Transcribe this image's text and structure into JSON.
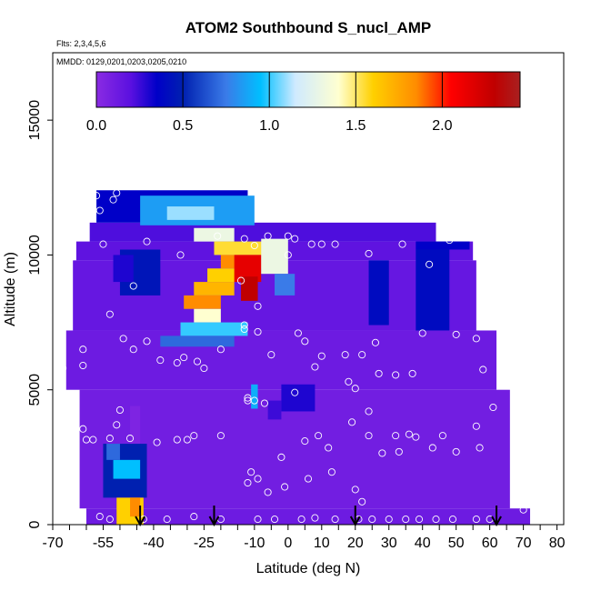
{
  "chart_data": {
    "type": "heatmap",
    "title": "ATOM2 Southbound S_nucl_AMP",
    "flights_note": "Flts: 2,3,4,5,6",
    "dates_note": "MMDD: 0129,0201,0203,0205,0210",
    "xlabel": "Latitude (deg N)",
    "ylabel": "Altitude (m)",
    "xlim": [
      -70,
      82
    ],
    "ylim": [
      0,
      17500
    ],
    "xticks": [
      -70,
      -55,
      -40,
      -25,
      -10,
      0,
      10,
      20,
      30,
      40,
      50,
      60,
      70,
      80
    ],
    "yticks": [
      0,
      5000,
      10000,
      15000
    ],
    "colorbar": {
      "range": [
        0,
        2.45
      ],
      "ticks": [
        0.0,
        0.5,
        1.0,
        1.5,
        2.0
      ],
      "tick_labels": [
        "0.0",
        "0.5",
        "1.0",
        "1.5",
        "2.0"
      ],
      "stops": [
        {
          "v": 0.0,
          "c": "#8a2be2"
        },
        {
          "v": 0.2,
          "c": "#5a10e0"
        },
        {
          "v": 0.35,
          "c": "#0000c8"
        },
        {
          "v": 0.5,
          "c": "#0020b0"
        },
        {
          "v": 0.75,
          "c": "#3a7be8"
        },
        {
          "v": 0.95,
          "c": "#00bfff"
        },
        {
          "v": 1.15,
          "c": "#cfeaff"
        },
        {
          "v": 1.4,
          "c": "#ffffd0"
        },
        {
          "v": 1.6,
          "c": "#ffd000"
        },
        {
          "v": 1.85,
          "c": "#ff8c00"
        },
        {
          "v": 2.05,
          "c": "#ff0000"
        },
        {
          "v": 2.3,
          "c": "#c00000"
        },
        {
          "v": 2.45,
          "c": "#a82020"
        }
      ]
    },
    "arrows_lat": [
      -44,
      -22,
      20,
      62
    ],
    "obs_points": [
      [
        -57,
        12200
      ],
      [
        -51,
        12300
      ],
      [
        -52,
        12050
      ],
      [
        -56,
        11650
      ],
      [
        -55,
        10400
      ],
      [
        -65,
        9850
      ],
      [
        -46,
        8850
      ],
      [
        -42,
        10500
      ],
      [
        -32,
        10000
      ],
      [
        -21,
        10700
      ],
      [
        -13,
        10600
      ],
      [
        -10,
        10350
      ],
      [
        -14,
        9050
      ],
      [
        -9,
        8100
      ],
      [
        -6,
        10700
      ],
      [
        0,
        10700
      ],
      [
        2,
        10600
      ],
      [
        7,
        10400
      ],
      [
        10,
        10400
      ],
      [
        14,
        10400
      ],
      [
        24,
        10050
      ],
      [
        34,
        10400
      ],
      [
        42,
        9650
      ],
      [
        48,
        10550
      ],
      [
        0,
        10000
      ],
      [
        -61,
        6500
      ],
      [
        -67,
        5800
      ],
      [
        -61,
        5900
      ],
      [
        -53,
        7800
      ],
      [
        -49,
        6900
      ],
      [
        -46,
        6500
      ],
      [
        -42,
        6800
      ],
      [
        -38,
        6100
      ],
      [
        -33,
        6000
      ],
      [
        -31,
        6200
      ],
      [
        -27,
        6050
      ],
      [
        -25,
        5800
      ],
      [
        -20,
        6500
      ],
      [
        -13,
        7400
      ],
      [
        -13,
        7250
      ],
      [
        -9,
        7150
      ],
      [
        -5,
        6300
      ],
      [
        3,
        7100
      ],
      [
        5,
        6800
      ],
      [
        10,
        6250
      ],
      [
        8,
        5850
      ],
      [
        17,
        6300
      ],
      [
        22,
        6300
      ],
      [
        26,
        6750
      ],
      [
        18,
        5300
      ],
      [
        20,
        5050
      ],
      [
        27,
        5600
      ],
      [
        32,
        5550
      ],
      [
        37,
        5600
      ],
      [
        40,
        7100
      ],
      [
        50,
        7050
      ],
      [
        56,
        6900
      ],
      [
        58,
        5750
      ],
      [
        -61,
        3550
      ],
      [
        -58,
        3150
      ],
      [
        -60,
        3150
      ],
      [
        -53,
        3200
      ],
      [
        -51,
        3700
      ],
      [
        -50,
        4250
      ],
      [
        -47,
        3200
      ],
      [
        -39,
        3050
      ],
      [
        -33,
        3150
      ],
      [
        -30,
        3150
      ],
      [
        -28,
        3300
      ],
      [
        -20,
        3300
      ],
      [
        -12,
        4600
      ],
      [
        -12,
        4700
      ],
      [
        -10,
        4600
      ],
      [
        -7,
        4500
      ],
      [
        2,
        4900
      ],
      [
        5,
        3100
      ],
      [
        9,
        3300
      ],
      [
        12,
        2850
      ],
      [
        19,
        3800
      ],
      [
        24,
        4200
      ],
      [
        24,
        3300
      ],
      [
        28,
        2650
      ],
      [
        32,
        3300
      ],
      [
        33,
        2700
      ],
      [
        36,
        3350
      ],
      [
        38,
        3250
      ],
      [
        43,
        2850
      ],
      [
        46,
        3300
      ],
      [
        50,
        2700
      ],
      [
        56,
        3650
      ],
      [
        57,
        2850
      ],
      [
        61,
        4350
      ],
      [
        -11,
        1950
      ],
      [
        -12,
        1550
      ],
      [
        -9,
        1700
      ],
      [
        -1,
        1400
      ],
      [
        -2,
        2500
      ],
      [
        6,
        1700
      ],
      [
        13,
        1950
      ],
      [
        20,
        1300
      ],
      [
        22,
        850
      ],
      [
        -6,
        1200
      ],
      [
        -56,
        300
      ],
      [
        -53,
        200
      ],
      [
        -43,
        200
      ],
      [
        -36,
        200
      ],
      [
        -20,
        200
      ],
      [
        -9,
        200
      ],
      [
        -4,
        200
      ],
      [
        4,
        200
      ],
      [
        8,
        250
      ],
      [
        14,
        200
      ],
      [
        21,
        200
      ],
      [
        25,
        200
      ],
      [
        30,
        200
      ],
      [
        35,
        200
      ],
      [
        39,
        200
      ],
      [
        44,
        200
      ],
      [
        49,
        200
      ],
      [
        56,
        200
      ],
      [
        60,
        200
      ],
      [
        70,
        550
      ],
      [
        -28,
        300
      ]
    ],
    "field_blocks": [
      {
        "lat": [
          -60,
          72
        ],
        "alt": [
          0,
          600
        ],
        "v": 0.12
      },
      {
        "lat": [
          -62,
          66
        ],
        "alt": [
          600,
          5000
        ],
        "v": 0.1
      },
      {
        "lat": [
          -66,
          62
        ],
        "alt": [
          5000,
          7200
        ],
        "v": 0.12
      },
      {
        "lat": [
          -64,
          56
        ],
        "alt": [
          7200,
          9800
        ],
        "v": 0.15
      },
      {
        "lat": [
          -63,
          55
        ],
        "alt": [
          9800,
          10500
        ],
        "v": 0.18
      },
      {
        "lat": [
          -59,
          44
        ],
        "alt": [
          10500,
          11200
        ],
        "v": 0.22
      },
      {
        "lat": [
          -57,
          -12
        ],
        "alt": [
          11200,
          12400
        ],
        "v": 0.35
      },
      {
        "lat": [
          -55,
          -42
        ],
        "alt": [
          1000,
          3000
        ],
        "v": 0.5
      },
      {
        "lat": [
          -51,
          -43
        ],
        "alt": [
          0,
          1000
        ],
        "v": 1.6
      },
      {
        "lat": [
          -47,
          -44
        ],
        "alt": [
          300,
          1000
        ],
        "v": 1.85
      },
      {
        "lat": [
          -52,
          -44
        ],
        "alt": [
          1700,
          2400
        ],
        "v": 0.95
      },
      {
        "lat": [
          -54,
          -50
        ],
        "alt": [
          2400,
          3000
        ],
        "v": 0.7
      },
      {
        "lat": [
          -47,
          -44
        ],
        "alt": [
          3000,
          4400
        ],
        "v": 0.05
      },
      {
        "lat": [
          -44,
          -10
        ],
        "alt": [
          11100,
          12200
        ],
        "v": 0.85
      },
      {
        "lat": [
          -36,
          -22
        ],
        "alt": [
          11300,
          11800
        ],
        "v": 1.1
      },
      {
        "lat": [
          -28,
          -16
        ],
        "alt": [
          10500,
          11000
        ],
        "v": 1.3
      },
      {
        "lat": [
          -22,
          -6
        ],
        "alt": [
          10000,
          10500
        ],
        "v": 1.55
      },
      {
        "lat": [
          -20,
          -8
        ],
        "alt": [
          9500,
          10000
        ],
        "v": 1.85
      },
      {
        "lat": [
          -24,
          -12
        ],
        "alt": [
          9000,
          9500
        ],
        "v": 1.6
      },
      {
        "lat": [
          -16,
          -8
        ],
        "alt": [
          9000,
          10000
        ],
        "v": 2.15
      },
      {
        "lat": [
          -14,
          -9
        ],
        "alt": [
          8300,
          9200
        ],
        "v": 2.3
      },
      {
        "lat": [
          -28,
          -16
        ],
        "alt": [
          8500,
          9000
        ],
        "v": 1.7
      },
      {
        "lat": [
          -31,
          -20
        ],
        "alt": [
          8000,
          8500
        ],
        "v": 1.85
      },
      {
        "lat": [
          -28,
          -20
        ],
        "alt": [
          7500,
          8000
        ],
        "v": 1.4
      },
      {
        "lat": [
          -32,
          -12
        ],
        "alt": [
          7000,
          7500
        ],
        "v": 1.0
      },
      {
        "lat": [
          -38,
          -16
        ],
        "alt": [
          6600,
          7000
        ],
        "v": 0.7
      },
      {
        "lat": [
          -8,
          0
        ],
        "alt": [
          9300,
          10600
        ],
        "v": 1.3
      },
      {
        "lat": [
          -4,
          2
        ],
        "alt": [
          8500,
          9300
        ],
        "v": 0.75
      },
      {
        "lat": [
          -50,
          -38
        ],
        "alt": [
          8500,
          10200
        ],
        "v": 0.45
      },
      {
        "lat": [
          -52,
          -46
        ],
        "alt": [
          9000,
          10000
        ],
        "v": 0.3
      },
      {
        "lat": [
          24,
          30
        ],
        "alt": [
          7400,
          9800
        ],
        "v": 0.4
      },
      {
        "lat": [
          38,
          48
        ],
        "alt": [
          7200,
          10200
        ],
        "v": 0.4
      },
      {
        "lat": [
          38,
          54
        ],
        "alt": [
          10200,
          10500
        ],
        "v": 0.35
      },
      {
        "lat": [
          -2,
          8
        ],
        "alt": [
          4200,
          5200
        ],
        "v": 0.3
      },
      {
        "lat": [
          -6,
          -2
        ],
        "alt": [
          3900,
          4600
        ],
        "v": 0.25
      },
      {
        "lat": [
          -11,
          -9
        ],
        "alt": [
          4300,
          5200
        ],
        "v": 0.9
      }
    ]
  }
}
